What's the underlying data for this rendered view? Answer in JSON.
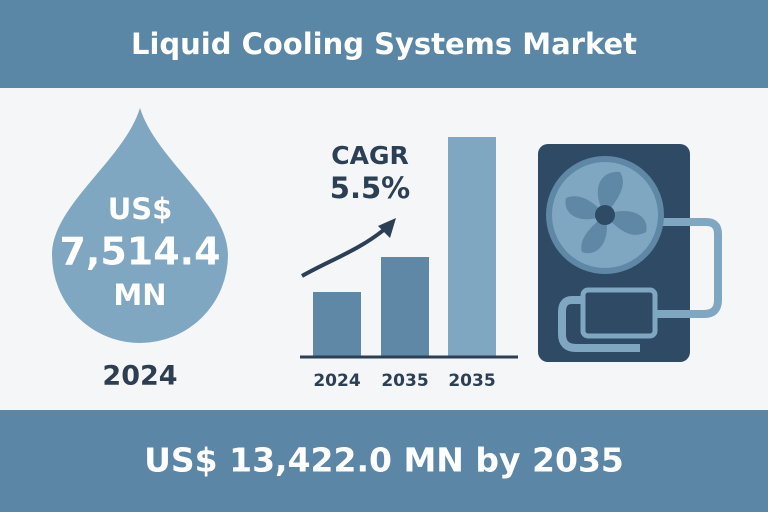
{
  "header": {
    "title": "Liquid Cooling Systems Market"
  },
  "drop": {
    "currency": "US$",
    "value": "7,514.4",
    "unit": "MN",
    "year": "2024"
  },
  "growth": {
    "label": "CAGR",
    "rate": "5.5%",
    "bar_labels": [
      "2024",
      "2035",
      "2035"
    ]
  },
  "footer": {
    "text": "US$ 13,422.0 MN by 2035"
  }
}
